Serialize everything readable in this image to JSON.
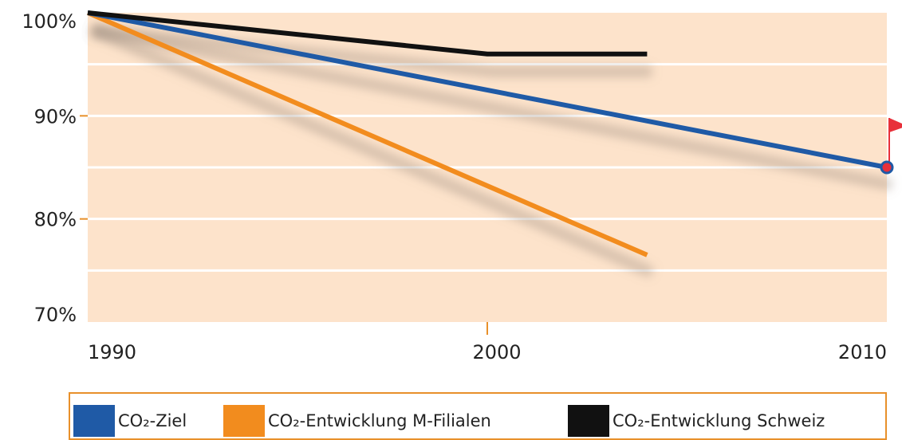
{
  "chart_data": {
    "type": "line",
    "x": [
      1990,
      2000,
      2010
    ],
    "x_ticks": [
      "1990",
      "2000",
      "2010"
    ],
    "y_ticks": [
      "100%",
      "90%",
      "80%",
      "70%"
    ],
    "xlim": [
      1990,
      2010
    ],
    "ylim": [
      70,
      100
    ],
    "grid": true,
    "legend_position": "bottom",
    "series": [
      {
        "name": "CO₂-Ziel",
        "color": "#1f5aa6",
        "points": [
          [
            1990,
            100
          ],
          [
            2010,
            85
          ]
        ],
        "end_marker": "target-flag"
      },
      {
        "name": "CO₂-Entwicklung M-Filialen",
        "color": "#f28c1e",
        "points": [
          [
            1990,
            100
          ],
          [
            2004,
            76.5
          ]
        ]
      },
      {
        "name": "CO₂-Entwicklung Schweiz",
        "color": "#111111",
        "points": [
          [
            1990,
            100
          ],
          [
            2000,
            96
          ],
          [
            2004,
            96
          ]
        ]
      }
    ]
  },
  "colors": {
    "plot_background": "#fde3cb",
    "gridline": "#ffffff",
    "legend_border": "#e8902a",
    "flag": "#e8303a"
  }
}
